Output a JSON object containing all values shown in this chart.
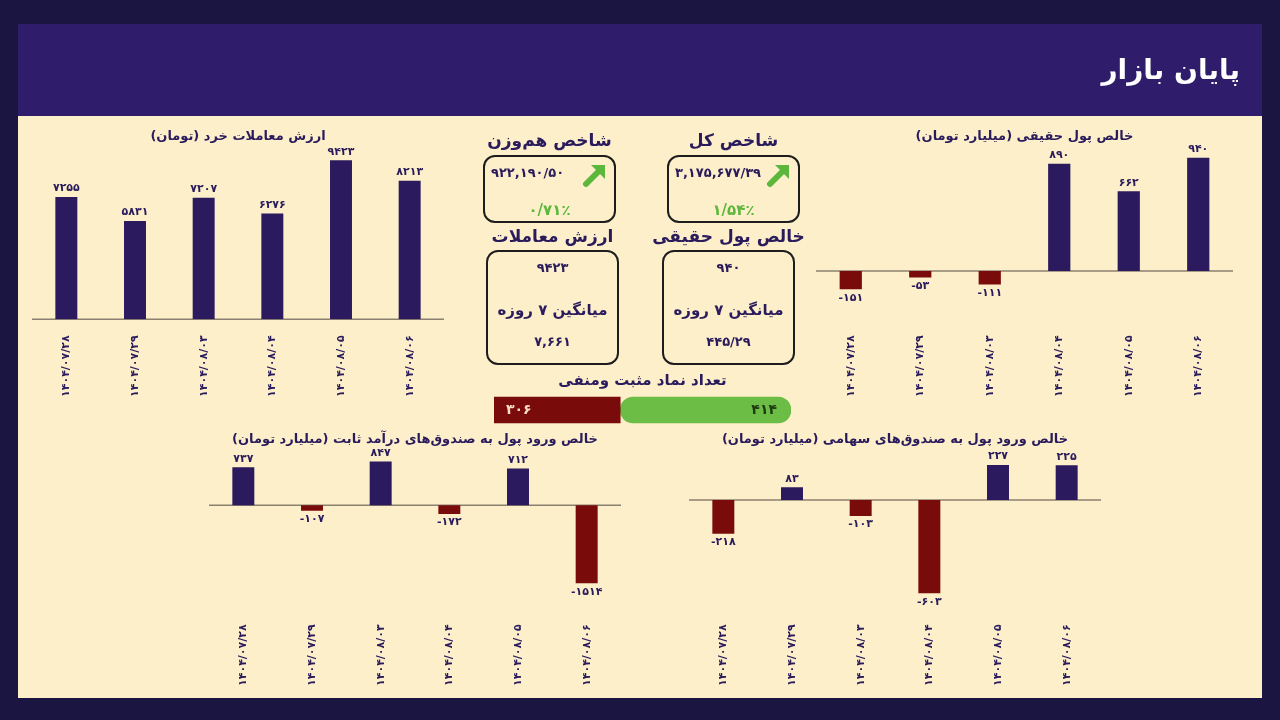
{
  "chart_data": [
    {
      "type": "other",
      "title": "پایان بازار"
    },
    {
      "type": "bar",
      "title": "خالص پول حقیقی (میلیارد تومان)",
      "categories": [
        "۱۴۰۴/۰۷/۲۸",
        "۱۴۰۴/۰۷/۲۹",
        "۱۴۰۴/۰۸/۰۳",
        "۱۴۰۴/۰۸/۰۴",
        "۱۴۰۴/۰۸/۰۵",
        "۱۴۰۴/۰۸/۰۶"
      ],
      "values": [
        -151,
        -53,
        -111,
        890,
        662,
        940
      ],
      "colors": [
        "#7a0b0b",
        "#7a0b0b",
        "#7a0b0b",
        "#2b1b5e",
        "#2b1b5e",
        "#2b1b5e"
      ],
      "value_labels": [
        "-۱۵۱",
        "-۵۳",
        "-۱۱۱",
        "۸۹۰",
        "۶۶۲",
        "۹۴۰"
      ]
    },
    {
      "type": "other",
      "title": "شاخص کل",
      "annotations": [
        "۳,۱۷۵,۶۷۷/۳۹",
        "۱/۵۴٪"
      ]
    },
    {
      "type": "other",
      "title": "شاخص هم‌وزن",
      "annotations": [
        "۹۲۲,۱۹۰/۵۰",
        "۰/۷۱٪"
      ]
    },
    {
      "type": "other",
      "title": "خالص پول حقیقی",
      "annotations": [
        "۹۴۰",
        "میانگین ۷ روزه",
        "۴۴۵/۲۹"
      ]
    },
    {
      "type": "other",
      "title": "ارزش معاملات",
      "annotations": [
        "۹۴۲۳",
        "میانگین ۷ روزه",
        "۷,۶۶۱"
      ]
    },
    {
      "type": "bar",
      "title": "تعداد نماد مثبت ومنفی",
      "orientation": "horizontal",
      "stacked": true,
      "categories": [
        null
      ],
      "series": [
        {
          "color": "#7a0b0b",
          "values": [
            306
          ],
          "value_labels": [
            "۳۰۶"
          ]
        },
        {
          "color": "#6cbd45",
          "values": [
            414
          ],
          "value_labels": [
            "۴۱۴"
          ]
        }
      ]
    },
    {
      "type": "bar",
      "title": "ارزش معاملات خرد (تومان)",
      "categories": [
        "۱۴۰۴/۰۷/۲۸",
        "۱۴۰۴/۰۷/۲۹",
        "۱۴۰۴/۰۸/۰۳",
        "۱۴۰۴/۰۸/۰۴",
        "۱۴۰۴/۰۸/۰۵",
        "۱۴۰۴/۰۸/۰۶"
      ],
      "values": [
        7255,
        5831,
        7207,
        6276,
        9423,
        8213
      ],
      "color": "#2b1b5e",
      "value_labels": [
        "۷۲۵۵",
        "۵۸۳۱",
        "۷۲۰۷",
        "۶۲۷۶",
        "۹۴۲۳",
        "۸۲۱۳"
      ]
    },
    {
      "type": "bar",
      "title": "خالص ورود پول به صندوق‌های سهامی (میلیارد تومان)",
      "categories": [
        "۱۴۰۴/۰۷/۲۸",
        "۱۴۰۴/۰۷/۲۹",
        "۱۴۰۴/۰۸/۰۳",
        "۱۴۰۴/۰۸/۰۴",
        "۱۴۰۴/۰۸/۰۵",
        "۱۴۰۴/۰۸/۰۶"
      ],
      "values": [
        -218,
        83,
        -103,
        -603,
        227,
        225
      ],
      "colors": [
        "#7a0b0b",
        "#2b1b5e",
        "#7a0b0b",
        "#7a0b0b",
        "#2b1b5e",
        "#2b1b5e"
      ],
      "value_labels": [
        "-۲۱۸",
        "۸۳",
        "-۱۰۳",
        "-۶۰۳",
        "۲۲۷",
        "۲۲۵"
      ]
    },
    {
      "type": "bar",
      "title": "خالص ورود پول به صندوق‌های درآمد ثابت (میلیارد تومان)",
      "categories": [
        "۱۴۰۴/۰۷/۲۸",
        "۱۴۰۴/۰۷/۲۹",
        "۱۴۰۴/۰۸/۰۳",
        "۱۴۰۴/۰۸/۰۴",
        "۱۴۰۴/۰۸/۰۵",
        "۱۴۰۴/۰۸/۰۶"
      ],
      "values": [
        737,
        -107,
        847,
        -172,
        712,
        -1514
      ],
      "colors": [
        "#2b1b5e",
        "#7a0b0b",
        "#2b1b5e",
        "#7a0b0b",
        "#2b1b5e",
        "#7a0b0b"
      ],
      "value_labels": [
        "۷۳۷",
        "-۱۰۷",
        "۸۴۷",
        "-۱۷۲",
        "۷۱۲",
        "-۱۵۱۴"
      ]
    }
  ]
}
